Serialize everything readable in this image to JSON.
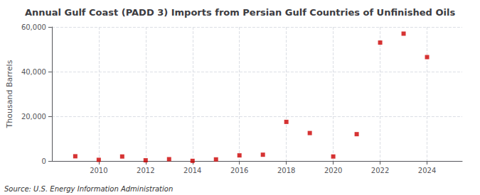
{
  "chart_data": {
    "type": "scatter",
    "title": "Annual Gulf Coast (PADD 3) Imports from Persian Gulf Countries of Unfinished Oils",
    "ylabel": "Thousand Barrels",
    "annotations": [
      "Source: U.S. Energy Information Administration"
    ],
    "x": [
      2009,
      2010,
      2011,
      2012,
      2013,
      2014,
      2015,
      2016,
      2017,
      2018,
      2019,
      2020,
      2021,
      2022,
      2023,
      2024
    ],
    "values": [
      2100,
      500,
      2000,
      300,
      800,
      50,
      700,
      2500,
      2800,
      17500,
      12500,
      2000,
      12000,
      53000,
      57000,
      46500
    ],
    "color": "#cc0000",
    "marker": "square",
    "xlim": [
      2008.0,
      2025.5
    ],
    "xticks": [
      2010,
      2012,
      2014,
      2016,
      2018,
      2020,
      2022,
      2024
    ],
    "ylim": [
      0,
      60000
    ],
    "yticks": [
      0,
      {
        "value": 20000,
        "label": "20,000"
      },
      {
        "value": 40000,
        "label": "40,000"
      },
      {
        "value": 60000,
        "label": "60,000"
      }
    ],
    "grid": true
  }
}
